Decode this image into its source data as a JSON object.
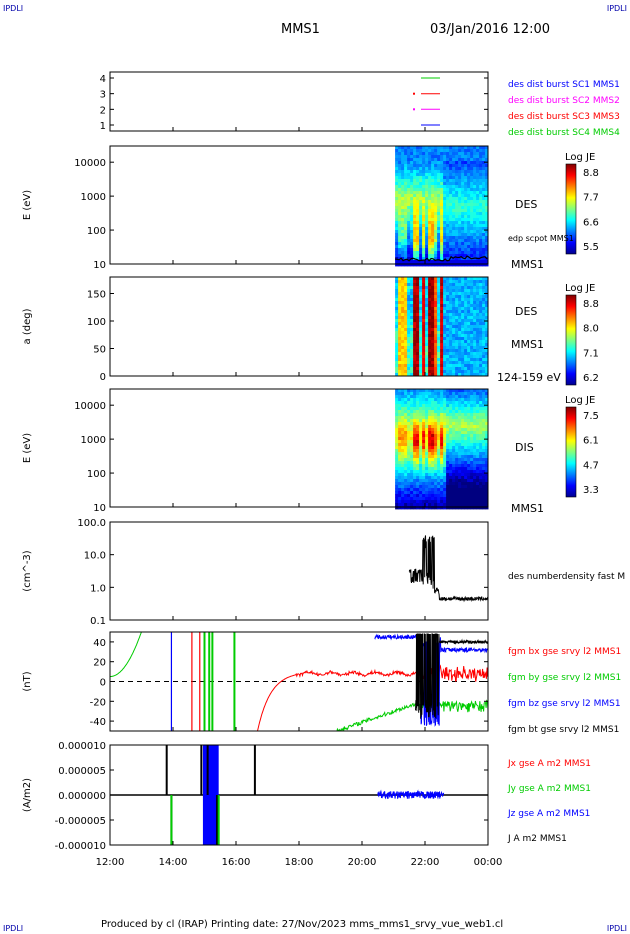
{
  "corners": {
    "tl": "IPDLI",
    "tr": "IPDLI",
    "bl": "IPDLI",
    "br": "IPDLI"
  },
  "header": {
    "mission": "MMS1",
    "date": "03/Jan/2016 12:00"
  },
  "footer": "Produced by cl (IRAP)   Printing date: 27/Nov/2023   mms_mms1_srvy_vue_web1.cl",
  "colors": {
    "mms1": "#0000ff",
    "mms2": "#ff00ff",
    "mms3": "#ff0000",
    "mms4": "#00cc00",
    "black": "#000000",
    "green": "#00cc00"
  },
  "chart_data": [
    {
      "type": "line",
      "ylabel": "",
      "yticks": [
        "4",
        "3",
        "2",
        "1"
      ],
      "series": [
        {
          "name": "des dist burst SC1 MMS1",
          "color": "#0000ff"
        },
        {
          "name": "des dist burst SC2 MMS2",
          "color": "#ff00ff"
        },
        {
          "name": "des dist burst SC3 MMS3",
          "color": "#ff0000"
        },
        {
          "name": "des dist burst SC4 MMS4",
          "color": "#00cc00"
        }
      ]
    },
    {
      "type": "heatmap",
      "ylabel": "E (eV)",
      "yticks": [
        "10000",
        "1000",
        "100",
        "10"
      ],
      "yscale": "log",
      "ylim": [
        10,
        30000
      ],
      "species": "DES",
      "overlay": "edp scpot MMS1",
      "sc": "MMS1",
      "colorbar": {
        "title": "Log JE",
        "ticks": [
          "8.8",
          "7.7",
          "6.6",
          "5.5"
        ]
      }
    },
    {
      "type": "heatmap",
      "ylabel": "a (deg)",
      "yticks": [
        "150",
        "100",
        "50",
        "0"
      ],
      "ylim": [
        0,
        180
      ],
      "species": "DES",
      "sc": "MMS1",
      "energy_range": "124-159 eV",
      "colorbar": {
        "title": "Log JE",
        "ticks": [
          "8.8",
          "8.0",
          "7.1",
          "6.2"
        ]
      }
    },
    {
      "type": "heatmap",
      "ylabel": "E (eV)",
      "yticks": [
        "10000",
        "1000",
        "100",
        "10"
      ],
      "yscale": "log",
      "ylim": [
        10,
        30000
      ],
      "species": "DIS",
      "sc": "MMS1",
      "colorbar": {
        "title": "Log JE",
        "ticks": [
          "7.5",
          "6.1",
          "4.7",
          "3.3"
        ]
      }
    },
    {
      "type": "line",
      "ylabel": "(cm^-3)",
      "yticks": [
        "100.0",
        "10.0",
        "1.0",
        "0.1"
      ],
      "yscale": "log",
      "ylim": [
        0.1,
        100
      ],
      "series": [
        {
          "name": "des numberdensity fast M",
          "color": "#000000"
        }
      ]
    },
    {
      "type": "line",
      "ylabel": "(nT)",
      "yticks": [
        "40",
        "20",
        "0",
        "-20",
        "-40"
      ],
      "ylim": [
        -50,
        50
      ],
      "series": [
        {
          "name": "fgm bx gse srvy l2 MMS1",
          "color": "#ff0000"
        },
        {
          "name": "fgm by gse srvy l2 MMS1",
          "color": "#00cc00"
        },
        {
          "name": "fgm bz gse srvy l2 MMS1",
          "color": "#0000ff"
        },
        {
          "name": "fgm bt gse srvy l2 MMS1",
          "color": "#000000"
        }
      ]
    },
    {
      "type": "line",
      "ylabel": "(A/m2)",
      "yticks": [
        "0.000010",
        "0.000005",
        "0.000000",
        "-0.000005",
        "-0.000010"
      ],
      "ylim": [
        -1e-05,
        1e-05
      ],
      "series": [
        {
          "name": "Jx gse A m2 MMS1",
          "color": "#ff0000"
        },
        {
          "name": "Jy gse A m2 MMS1",
          "color": "#00cc00"
        },
        {
          "name": "Jz gse A m2 MMS1",
          "color": "#0000ff"
        },
        {
          "name": "J A m2 MMS1",
          "color": "#000000"
        }
      ]
    }
  ],
  "xaxis": {
    "ticks": [
      "12:00",
      "14:00",
      "16:00",
      "18:00",
      "20:00",
      "22:00",
      "00:00"
    ]
  }
}
